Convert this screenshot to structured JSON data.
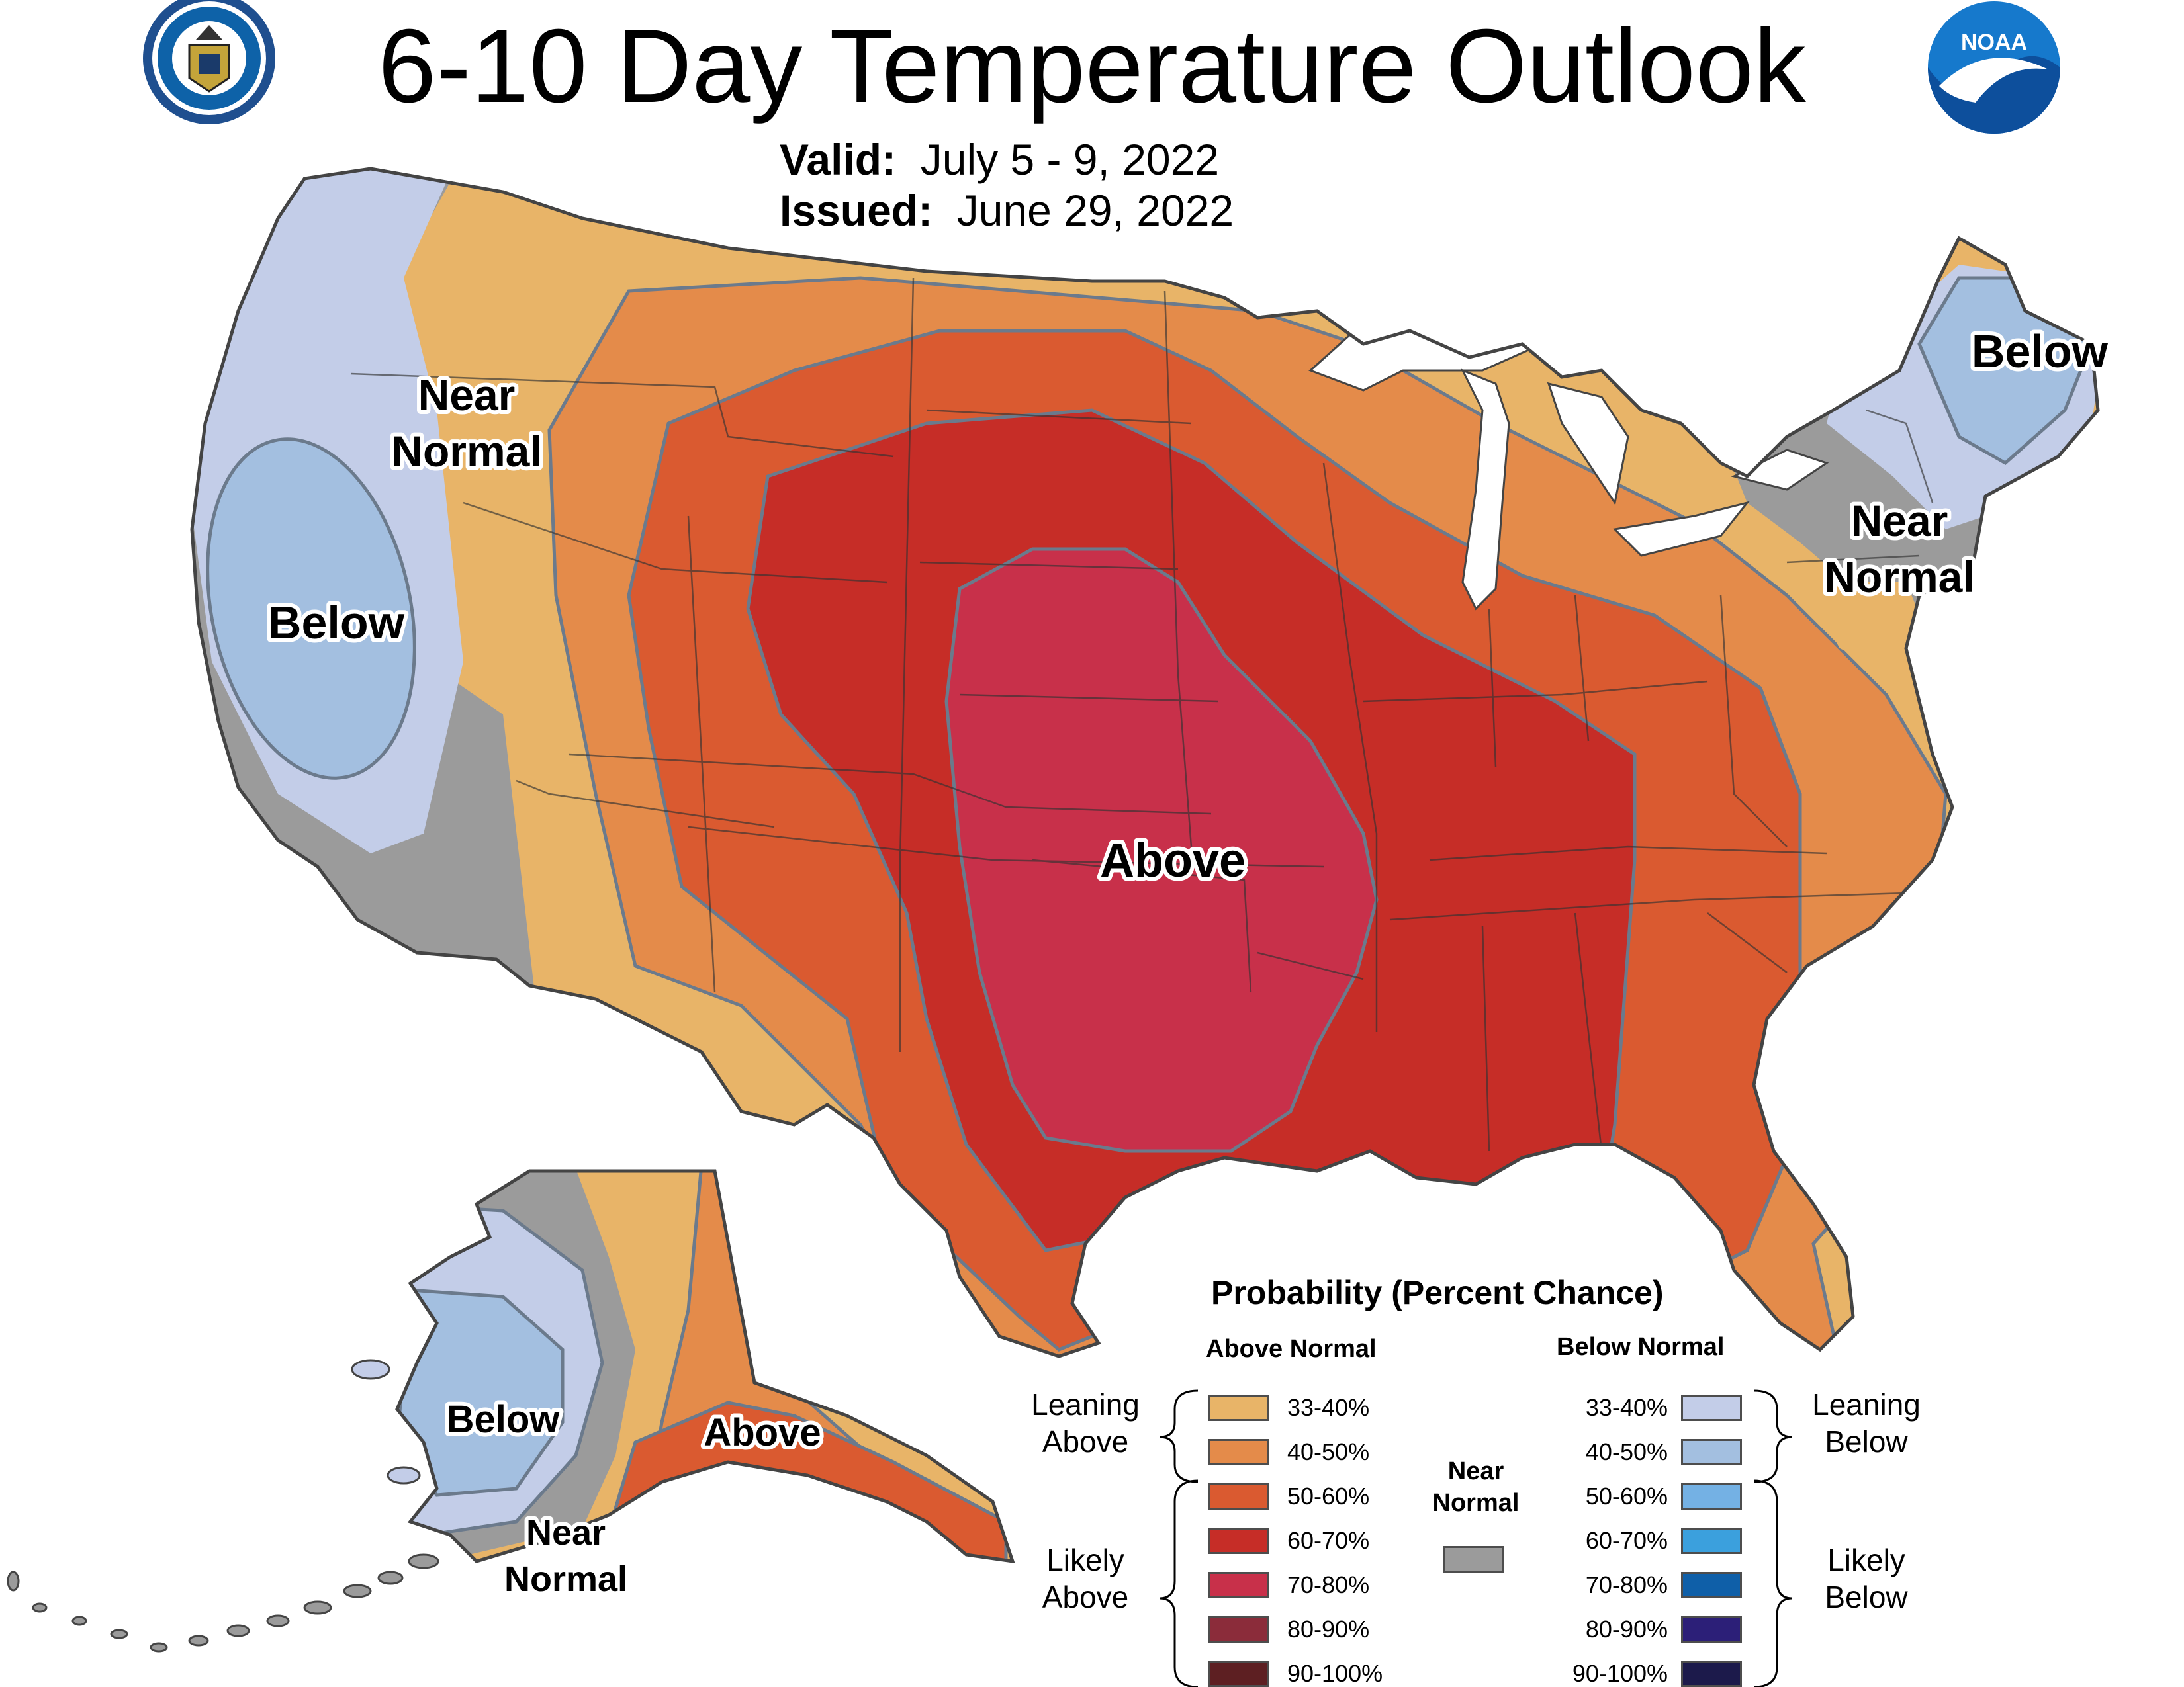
{
  "header": {
    "title": "6-10 Day Temperature Outlook",
    "valid_label": "Valid:",
    "valid_value": "July 5 - 9, 2022",
    "issued_label": "Issued:",
    "issued_value": "June 29, 2022"
  },
  "logos": {
    "left": {
      "icon": "department-of-commerce-seal",
      "text": "DEPARTMENT OF COMMERCE · UNITED STATES OF AMERICA"
    },
    "right": {
      "icon": "noaa-logo",
      "text": "NOAA"
    }
  },
  "map_labels": {
    "conus_near_normal_west": [
      "Near",
      "Normal"
    ],
    "conus_below_west": "Below",
    "conus_above": "Above",
    "conus_below_northeast": "Below",
    "conus_near_normal_northeast": [
      "Near",
      "Normal"
    ],
    "alaska_below": "Below",
    "alaska_above": "Above",
    "alaska_near_normal": [
      "Near",
      "Normal"
    ]
  },
  "legend": {
    "title": "Probability (Percent Chance)",
    "above_header": "Above Normal",
    "below_header": "Below Normal",
    "near_header": [
      "Near",
      "Normal"
    ],
    "leaning_above": [
      "Leaning",
      "Above"
    ],
    "likely_above": [
      "Likely",
      "Above"
    ],
    "leaning_below": [
      "Leaning",
      "Below"
    ],
    "likely_below": [
      "Likely",
      "Below"
    ],
    "above_bins": [
      {
        "label": "33-40%",
        "color": "#e8b468"
      },
      {
        "label": "40-50%",
        "color": "#e48b4a"
      },
      {
        "label": "50-60%",
        "color": "#da5a30"
      },
      {
        "label": "60-70%",
        "color": "#c62d27"
      },
      {
        "label": "70-80%",
        "color": "#c8304a"
      },
      {
        "label": "80-90%",
        "color": "#8b2c3a"
      },
      {
        "label": "90-100%",
        "color": "#5d1f22"
      }
    ],
    "below_bins": [
      {
        "label": "33-40%",
        "color": "#c3cde8"
      },
      {
        "label": "40-50%",
        "color": "#a3bfe0"
      },
      {
        "label": "50-60%",
        "color": "#74b1e4"
      },
      {
        "label": "60-70%",
        "color": "#3ba0dd"
      },
      {
        "label": "70-80%",
        "color": "#0f5fa8"
      },
      {
        "label": "80-90%",
        "color": "#2c1f78"
      },
      {
        "label": "90-100%",
        "color": "#1c1a4b"
      }
    ],
    "near_color": "#9b9b9b"
  }
}
